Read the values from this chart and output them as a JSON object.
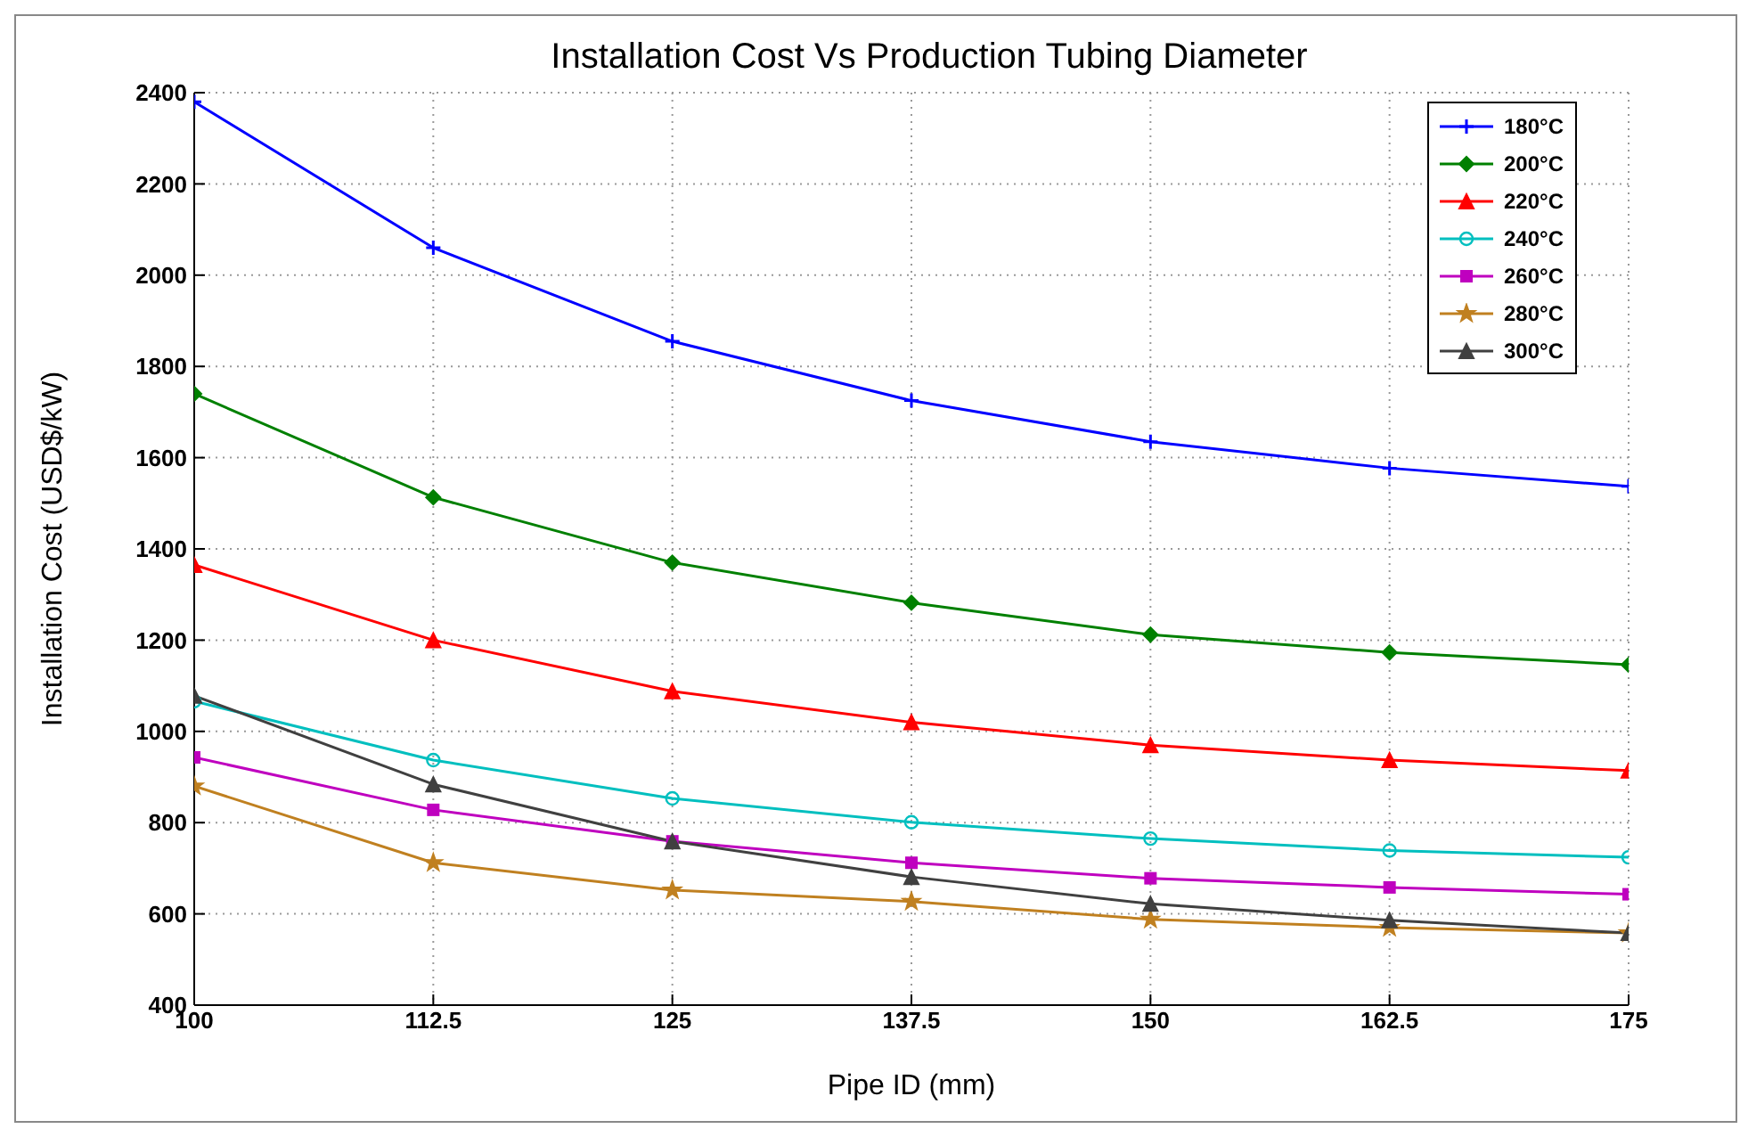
{
  "chart_data": {
    "type": "line",
    "title": "Installation Cost Vs Production Tubing Diameter",
    "xlabel": "Pipe ID (mm)",
    "ylabel": "Installation Cost (USD$/kW)",
    "x": [
      100,
      112.5,
      125,
      137.5,
      150,
      162.5,
      175
    ],
    "series": [
      {
        "name": "180°C",
        "color": "#0000ff",
        "marker": "cross",
        "values": [
          2380,
          2060,
          1855,
          1725,
          1635,
          1577,
          1537
        ]
      },
      {
        "name": "200°C",
        "color": "#008000",
        "marker": "diamond",
        "values": [
          1740,
          1513,
          1370,
          1282,
          1212,
          1173,
          1146
        ]
      },
      {
        "name": "220°C",
        "color": "#ff0000",
        "marker": "triangle",
        "values": [
          1365,
          1200,
          1088,
          1020,
          970,
          937,
          914
        ]
      },
      {
        "name": "240°C",
        "color": "#00bfbf",
        "marker": "circle",
        "values": [
          1066,
          937,
          853,
          801,
          765,
          739,
          724
        ]
      },
      {
        "name": "260°C",
        "color": "#bf00bf",
        "marker": "square",
        "values": [
          943,
          828,
          759,
          712,
          678,
          658,
          643
        ]
      },
      {
        "name": "280°C",
        "color": "#c08020",
        "marker": "star",
        "values": [
          880,
          712,
          652,
          627,
          588,
          570,
          558
        ]
      },
      {
        "name": "300°C",
        "color": "#404040",
        "marker": "triangle",
        "values": [
          1078,
          884,
          759,
          681,
          622,
          586,
          558
        ]
      }
    ],
    "xlim": [
      100,
      175
    ],
    "xticks": [
      100,
      112.5,
      125,
      137.5,
      150,
      162.5,
      175
    ],
    "ylim": [
      400,
      2400
    ],
    "yticks": [
      400,
      600,
      800,
      1000,
      1200,
      1400,
      1600,
      1800,
      2000,
      2200,
      2400
    ],
    "grid": true,
    "legend": "top right",
    "line_style": "solid"
  }
}
